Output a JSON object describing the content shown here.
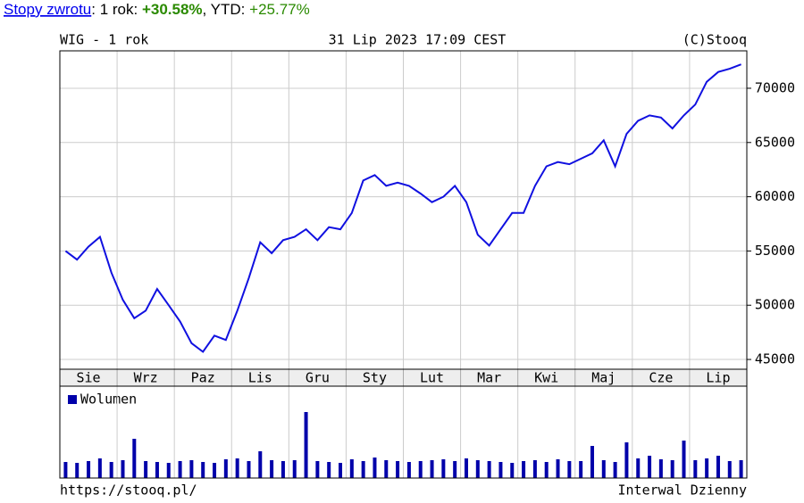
{
  "header": {
    "link": "Stopy zwrotu",
    "period_label": ": 1 rok: ",
    "period_return": "+30.58%",
    "ytd_label": ", YTD: ",
    "ytd_return": "+25.77%"
  },
  "chart_data": {
    "type": "line",
    "title": "WIG - 1 rok",
    "date": "31 Lip 2023 17:09 CEST",
    "source": "(C)Stooq",
    "footer_left": "https://stooq.pl/",
    "footer_right": "Interwal Dzienny",
    "color": "#1010e0",
    "volume_color": "#0000aa",
    "volume_label": "Wolumen",
    "ylim": [
      44100,
      73450
    ],
    "yticks": [
      45000,
      50000,
      55000,
      60000,
      65000,
      70000
    ],
    "grid": true,
    "groups": [
      {
        "label": "Sie",
        "values": [
          55000,
          54200,
          55400,
          56300,
          53000
        ],
        "volume": [
          18,
          17,
          19,
          22,
          18
        ]
      },
      {
        "label": "Wrz",
        "values": [
          50500,
          48800,
          49500,
          51500,
          50000
        ],
        "volume": [
          20,
          44,
          19,
          18,
          17
        ]
      },
      {
        "label": "Paz",
        "values": [
          48500,
          46500,
          45700,
          47200,
          46800
        ],
        "volume": [
          19,
          20,
          18,
          17,
          21
        ]
      },
      {
        "label": "Lis",
        "values": [
          49500,
          52500,
          55800,
          54800,
          56000
        ],
        "volume": [
          22,
          19,
          30,
          20,
          19
        ]
      },
      {
        "label": "Gru",
        "values": [
          56300,
          57000,
          56000,
          57200,
          57000
        ],
        "volume": [
          20,
          74,
          19,
          18,
          17
        ]
      },
      {
        "label": "Sty",
        "values": [
          58500,
          61500,
          62000,
          61000,
          61300
        ],
        "volume": [
          21,
          19,
          23,
          20,
          19
        ]
      },
      {
        "label": "Lut",
        "values": [
          61000,
          60300,
          59500,
          60000,
          61000
        ],
        "volume": [
          18,
          19,
          20,
          21,
          19
        ]
      },
      {
        "label": "Mar",
        "values": [
          59500,
          56500,
          55500,
          57000,
          58500
        ],
        "volume": [
          22,
          20,
          19,
          18,
          17
        ]
      },
      {
        "label": "Kwi",
        "values": [
          58500,
          61000,
          62800,
          63200,
          63000
        ],
        "volume": [
          19,
          20,
          18,
          21,
          19
        ]
      },
      {
        "label": "Maj",
        "values": [
          63500,
          64000,
          65200,
          62800,
          65800
        ],
        "volume": [
          19,
          36,
          20,
          18,
          40
        ]
      },
      {
        "label": "Cze",
        "values": [
          67000,
          67500,
          67300,
          66300,
          67500
        ],
        "volume": [
          22,
          25,
          21,
          20,
          42
        ]
      },
      {
        "label": "Lip",
        "values": [
          68500,
          70600,
          71500,
          71800,
          72200
        ],
        "volume": [
          20,
          22,
          25,
          19,
          20
        ]
      }
    ]
  }
}
